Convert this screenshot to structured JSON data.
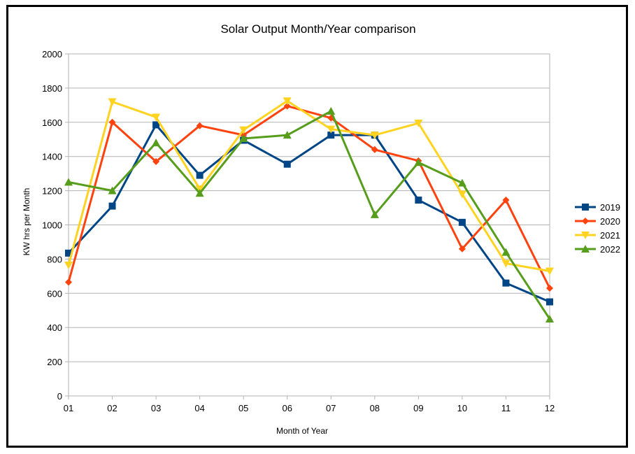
{
  "chart_data": {
    "type": "line",
    "title": "Solar Output Month/Year comparison",
    "xlabel": "Month of Year",
    "ylabel": "KW hrs per Month",
    "categories": [
      "01",
      "02",
      "03",
      "04",
      "05",
      "06",
      "07",
      "08",
      "09",
      "10",
      "11",
      "12"
    ],
    "ylim": [
      0,
      2000
    ],
    "yticks": [
      0,
      200,
      400,
      600,
      800,
      1000,
      1200,
      1400,
      1600,
      1800,
      2000
    ],
    "grid": "horizontal",
    "legend": "right",
    "series": [
      {
        "name": "2019",
        "color": "#004586",
        "marker": "square",
        "values": [
          835,
          1110,
          1585,
          1290,
          1495,
          1355,
          1525,
          1525,
          1145,
          1015,
          660,
          550
        ]
      },
      {
        "name": "2020",
        "color": "#ff420e",
        "marker": "diamond",
        "values": [
          665,
          1600,
          1370,
          1580,
          1525,
          1695,
          1625,
          1440,
          1375,
          860,
          1145,
          630
        ]
      },
      {
        "name": "2021",
        "color": "#ffd320",
        "marker": "triangle-down",
        "values": [
          765,
          1720,
          1630,
          1210,
          1555,
          1725,
          1560,
          1525,
          1595,
          1180,
          775,
          730
        ]
      },
      {
        "name": "2022",
        "color": "#579d1c",
        "marker": "triangle-up",
        "values": [
          1250,
          1200,
          1480,
          1185,
          1505,
          1525,
          1665,
          1060,
          1365,
          1245,
          840,
          450
        ]
      }
    ]
  }
}
